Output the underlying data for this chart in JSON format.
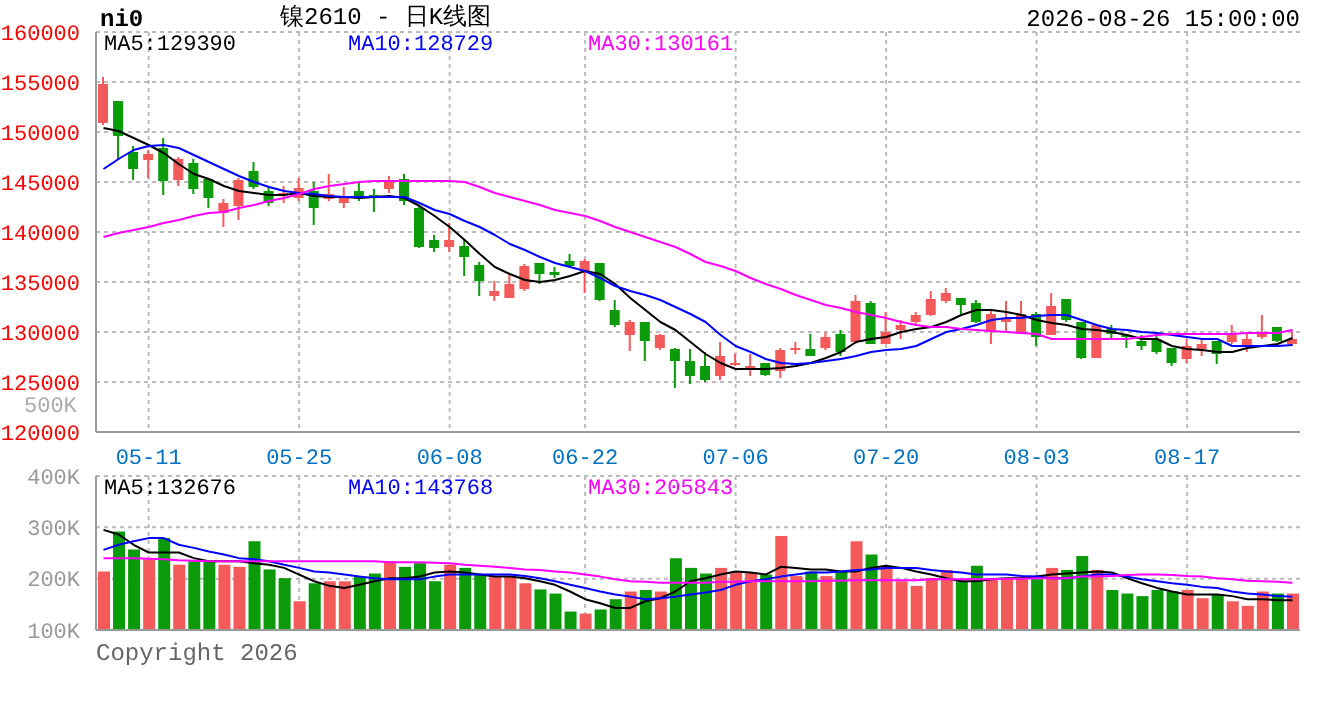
{
  "chart_data": [
    {
      "type": "candlestick",
      "title": "镍2610 - 日K线图",
      "annotations": [
        "ni0",
        "2026-08-26 15:00:00",
        "500K"
      ],
      "categories": [
        null,
        null,
        null,
        "05-11",
        null,
        null,
        null,
        null,
        null,
        null,
        null,
        null,
        null,
        "05-25",
        null,
        null,
        null,
        null,
        null,
        null,
        null,
        null,
        null,
        "06-08",
        null,
        null,
        null,
        null,
        null,
        null,
        null,
        null,
        "06-22",
        null,
        null,
        null,
        null,
        null,
        null,
        null,
        null,
        null,
        "07-06",
        null,
        null,
        null,
        null,
        null,
        null,
        null,
        null,
        null,
        "07-20",
        null,
        null,
        null,
        null,
        null,
        null,
        null,
        null,
        null,
        "08-03",
        null,
        null,
        null,
        null,
        null,
        null,
        null,
        null,
        null,
        "08-17",
        null,
        null,
        null,
        null,
        null,
        null,
        null
      ],
      "ohlc": [
        [
          150900,
          155500,
          150700,
          154800
        ],
        [
          153100,
          153100,
          147300,
          149600
        ],
        [
          148000,
          148600,
          145200,
          146300
        ],
        [
          147200,
          148200,
          145400,
          147800
        ],
        [
          148400,
          149400,
          143700,
          145100
        ],
        [
          145200,
          147500,
          144600,
          147300
        ],
        [
          146900,
          147300,
          143800,
          144300
        ],
        [
          145300,
          145400,
          142400,
          143400
        ],
        [
          141900,
          143300,
          140500,
          142900
        ],
        [
          142600,
          145400,
          141200,
          145200
        ],
        [
          146100,
          147000,
          144300,
          144500
        ],
        [
          144100,
          144600,
          142600,
          142900
        ],
        [
          143700,
          144600,
          142900,
          143900
        ],
        [
          143400,
          145400,
          143100,
          144400
        ],
        [
          144100,
          145000,
          140700,
          142400
        ],
        [
          143300,
          145800,
          143100,
          143800
        ],
        [
          142900,
          144500,
          142400,
          143600
        ],
        [
          144100,
          145000,
          143100,
          143400
        ],
        [
          143700,
          144300,
          142000,
          143500
        ],
        [
          144300,
          145600,
          143900,
          145200
        ],
        [
          145300,
          145800,
          142700,
          143100
        ],
        [
          142400,
          142700,
          138400,
          138500
        ],
        [
          139200,
          139700,
          138000,
          138400
        ],
        [
          138500,
          140900,
          138000,
          139200
        ],
        [
          138600,
          139200,
          135600,
          137500
        ],
        [
          136700,
          137000,
          133600,
          135100
        ],
        [
          133600,
          135100,
          133100,
          134100
        ],
        [
          133400,
          135900,
          133400,
          134800
        ],
        [
          134300,
          136800,
          134100,
          136600
        ],
        [
          136900,
          136900,
          134800,
          135800
        ],
        [
          136000,
          136500,
          135400,
          135700
        ],
        [
          137100,
          137800,
          136500,
          136600
        ],
        [
          136100,
          137300,
          133900,
          137100
        ],
        [
          136900,
          136900,
          133100,
          133200
        ],
        [
          132200,
          133200,
          130500,
          130700
        ],
        [
          129700,
          131200,
          128100,
          131000
        ],
        [
          131000,
          131000,
          127100,
          129100
        ],
        [
          128400,
          129800,
          128200,
          129700
        ],
        [
          128300,
          128400,
          124400,
          127100
        ],
        [
          127100,
          128300,
          124800,
          125600
        ],
        [
          126600,
          128000,
          125000,
          125200
        ],
        [
          125600,
          129000,
          125200,
          127600
        ],
        [
          126700,
          127800,
          126600,
          126900
        ],
        [
          126300,
          127800,
          125600,
          126600
        ],
        [
          126900,
          126900,
          125600,
          125700
        ],
        [
          126100,
          128400,
          125400,
          128200
        ],
        [
          128200,
          129000,
          127800,
          128400
        ],
        [
          128300,
          129800,
          127600,
          127600
        ],
        [
          128400,
          130000,
          128200,
          129500
        ],
        [
          129800,
          130200,
          127600,
          128000
        ],
        [
          129000,
          133700,
          128800,
          133100
        ],
        [
          132900,
          133100,
          128800,
          128800
        ],
        [
          128800,
          132000,
          128800,
          130000
        ],
        [
          130200,
          131200,
          129300,
          130700
        ],
        [
          131000,
          132000,
          130700,
          131700
        ],
        [
          131700,
          134100,
          131600,
          133300
        ],
        [
          133100,
          134400,
          132900,
          133900
        ],
        [
          133400,
          133400,
          131800,
          132700
        ],
        [
          132900,
          133200,
          130900,
          131000
        ],
        [
          130000,
          132200,
          128800,
          131800
        ],
        [
          131000,
          133100,
          130000,
          131400
        ],
        [
          129900,
          133100,
          129800,
          131800
        ],
        [
          131800,
          132000,
          128600,
          129500
        ],
        [
          129700,
          133900,
          129700,
          132600
        ],
        [
          133300,
          133300,
          131000,
          131200
        ],
        [
          131000,
          131000,
          127300,
          127400
        ],
        [
          127400,
          130700,
          127400,
          130700
        ],
        [
          130300,
          130700,
          129300,
          129800
        ],
        [
          129700,
          129800,
          128400,
          129500
        ],
        [
          129100,
          129700,
          128200,
          128600
        ],
        [
          129300,
          130000,
          127800,
          128000
        ],
        [
          128400,
          128400,
          126600,
          126900
        ],
        [
          127300,
          129300,
          126900,
          128600
        ],
        [
          128300,
          129300,
          127600,
          128800
        ],
        [
          129100,
          129100,
          126800,
          127800
        ],
        [
          129000,
          130700,
          128800,
          129800
        ],
        [
          128600,
          130000,
          128000,
          129300
        ],
        [
          129500,
          131700,
          129300,
          130000
        ],
        [
          130500,
          130500,
          129000,
          129100
        ],
        [
          128800,
          130200,
          128600,
          129300
        ]
      ],
      "colors": [
        "#f55a5a",
        "#0a9a0a",
        "#0a9a0a",
        "#f55a5a",
        "#0a9a0a",
        "#f55a5a",
        "#0a9a0a",
        "#0a9a0a",
        "#f55a5a",
        "#f55a5a",
        "#0a9a0a",
        "#0a9a0a",
        "#f55a5a",
        "#f55a5a",
        "#0a9a0a",
        "#f55a5a",
        "#f55a5a",
        "#0a9a0a",
        "#0a9a0a",
        "#f55a5a",
        "#0a9a0a",
        "#0a9a0a",
        "#0a9a0a",
        "#f55a5a",
        "#0a9a0a",
        "#0a9a0a",
        "#f55a5a",
        "#f55a5a",
        "#f55a5a",
        "#0a9a0a",
        "#0a9a0a",
        "#0a9a0a",
        "#f55a5a",
        "#0a9a0a",
        "#0a9a0a",
        "#f55a5a",
        "#0a9a0a",
        "#f55a5a",
        "#0a9a0a",
        "#0a9a0a",
        "#0a9a0a",
        "#f55a5a",
        "#f55a5a",
        "#f55a5a",
        "#0a9a0a",
        "#f55a5a",
        "#f55a5a",
        "#0a9a0a",
        "#f55a5a",
        "#0a9a0a",
        "#f55a5a",
        "#0a9a0a",
        "#f55a5a",
        "#f55a5a",
        "#f55a5a",
        "#f55a5a",
        "#f55a5a",
        "#0a9a0a",
        "#0a9a0a",
        "#f55a5a",
        "#f55a5a",
        "#f55a5a",
        "#0a9a0a",
        "#f55a5a",
        "#0a9a0a",
        "#0a9a0a",
        "#f55a5a",
        "#0a9a0a",
        "#0a9a0a",
        "#0a9a0a",
        "#0a9a0a",
        "#0a9a0a",
        "#f55a5a",
        "#f55a5a",
        "#0a9a0a",
        "#f55a5a",
        "#f55a5a",
        "#f55a5a",
        "#0a9a0a",
        "#f55a5a"
      ],
      "series": [
        {
          "name": "MA5:129390",
          "type": "line",
          "color": "#000000",
          "values": [
            150400,
            150100,
            149400,
            148700,
            147900,
            146800,
            145800,
            145300,
            144600,
            144100,
            143900,
            143700,
            143700,
            143900,
            143600,
            143500,
            143500,
            143400,
            143500,
            143600,
            143400,
            142600,
            141600,
            140500,
            139200,
            137800,
            136500,
            135800,
            135200,
            135000,
            135200,
            135600,
            136100,
            135800,
            134800,
            133400,
            132200,
            131000,
            130200,
            129000,
            127800,
            126900,
            126300,
            126300,
            126300,
            126400,
            126600,
            126900,
            127400,
            128000,
            129000,
            129300,
            129500,
            130000,
            130300,
            130500,
            131000,
            131700,
            132200,
            132200,
            132000,
            131700,
            131200,
            130900,
            130700,
            130300,
            130200,
            130000,
            129700,
            129300,
            129300,
            128600,
            128300,
            128200,
            128000,
            128000,
            128400,
            128600,
            128800,
            129400
          ]
        },
        {
          "name": "MA10:128729",
          "type": "line",
          "color": "#0000ff",
          "values": [
            146300,
            147300,
            148200,
            148600,
            148700,
            148400,
            147700,
            147000,
            146300,
            145600,
            145000,
            144500,
            144100,
            143900,
            143800,
            143600,
            143500,
            143500,
            143500,
            143500,
            143500,
            142900,
            142200,
            141800,
            141100,
            140500,
            139700,
            138800,
            138200,
            137500,
            136900,
            136500,
            136100,
            135400,
            134600,
            134100,
            133700,
            133200,
            132500,
            131800,
            131000,
            129700,
            128600,
            128000,
            127300,
            126900,
            126800,
            126900,
            127100,
            127300,
            127600,
            128000,
            128200,
            128300,
            128600,
            129300,
            130000,
            130300,
            130700,
            131200,
            131400,
            131400,
            131600,
            131700,
            131700,
            131200,
            130700,
            130300,
            130200,
            130000,
            129900,
            129700,
            129500,
            129300,
            129300,
            128600,
            128600,
            128600,
            128600,
            128700
          ]
        },
        {
          "name": "MA30:130161",
          "type": "line",
          "color": "#ff00ff",
          "values": [
            139500,
            139900,
            140200,
            140500,
            140900,
            141200,
            141600,
            141900,
            142000,
            142400,
            142700,
            143100,
            143400,
            143800,
            144300,
            144600,
            144800,
            145000,
            145100,
            145100,
            145100,
            145100,
            145100,
            145100,
            145000,
            144500,
            143900,
            143500,
            143100,
            142700,
            142200,
            141900,
            141600,
            141100,
            140500,
            140000,
            139500,
            139000,
            138500,
            137800,
            137000,
            136600,
            136100,
            135400,
            134800,
            134300,
            133700,
            133200,
            132700,
            132400,
            132000,
            131700,
            131400,
            131000,
            130700,
            130500,
            130500,
            130300,
            130200,
            130100,
            130000,
            129900,
            129800,
            129300,
            129300,
            129300,
            129300,
            129300,
            129300,
            129500,
            129700,
            129800,
            129800,
            129800,
            129800,
            129800,
            129900,
            129900,
            129900,
            130200
          ]
        }
      ],
      "ylim": [
        120000,
        160000
      ],
      "yticks": [
        120000,
        125000,
        130000,
        135000,
        140000,
        145000,
        150000,
        155000,
        160000
      ],
      "grid": true,
      "legend": "top left"
    },
    {
      "type": "bar",
      "annotations": [
        "Copyright 2026"
      ],
      "tick_labels": "y",
      "categories": [
        null,
        null,
        null,
        null,
        null,
        null,
        null,
        null,
        null,
        null,
        null,
        null,
        null,
        null,
        null,
        null,
        null,
        null,
        null,
        null,
        null,
        null,
        null,
        null,
        null,
        null,
        null,
        null,
        null,
        null,
        null,
        null,
        null,
        null,
        null,
        null,
        null,
        null,
        null,
        null,
        null,
        null,
        null,
        null,
        null,
        null,
        null,
        null,
        null,
        null,
        null,
        null,
        null,
        null,
        null,
        null,
        null,
        null,
        null,
        null,
        null,
        null,
        null,
        null,
        null,
        null,
        null,
        null,
        null,
        null,
        null,
        null,
        null,
        null,
        null,
        null,
        null,
        null,
        null,
        null
      ],
      "values": [
        214000,
        292000,
        257000,
        238000,
        279000,
        227000,
        234000,
        234000,
        227000,
        223000,
        273000,
        218000,
        201000,
        156000,
        191000,
        195000,
        195000,
        204000,
        210000,
        234000,
        223000,
        230000,
        195000,
        227000,
        221000,
        208000,
        204000,
        204000,
        191000,
        179000,
        171000,
        136000,
        132000,
        140000,
        160000,
        175000,
        178000,
        175000,
        240000,
        221000,
        210000,
        221000,
        212000,
        212000,
        208000,
        283000,
        205000,
        214000,
        205000,
        214000,
        273000,
        247000,
        223000,
        195000,
        186000,
        201000,
        217000,
        195000,
        225000,
        201000,
        201000,
        201000,
        199000,
        221000,
        217000,
        244000,
        217000,
        178000,
        171000,
        166000,
        178000,
        175000,
        178000,
        162000,
        169000,
        156000,
        147000,
        175000,
        171000,
        171000
      ],
      "colors": [
        "#f55a5a",
        "#0a9a0a",
        "#0a9a0a",
        "#f55a5a",
        "#0a9a0a",
        "#f55a5a",
        "#0a9a0a",
        "#0a9a0a",
        "#f55a5a",
        "#f55a5a",
        "#0a9a0a",
        "#0a9a0a",
        "#0a9a0a",
        "#f55a5a",
        "#0a9a0a",
        "#f55a5a",
        "#f55a5a",
        "#0a9a0a",
        "#0a9a0a",
        "#f55a5a",
        "#0a9a0a",
        "#0a9a0a",
        "#0a9a0a",
        "#f55a5a",
        "#0a9a0a",
        "#0a9a0a",
        "#f55a5a",
        "#f55a5a",
        "#f55a5a",
        "#0a9a0a",
        "#0a9a0a",
        "#0a9a0a",
        "#f55a5a",
        "#0a9a0a",
        "#0a9a0a",
        "#f55a5a",
        "#0a9a0a",
        "#f55a5a",
        "#0a9a0a",
        "#0a9a0a",
        "#0a9a0a",
        "#f55a5a",
        "#f55a5a",
        "#f55a5a",
        "#0a9a0a",
        "#f55a5a",
        "#f55a5a",
        "#0a9a0a",
        "#f55a5a",
        "#0a9a0a",
        "#f55a5a",
        "#0a9a0a",
        "#f55a5a",
        "#f55a5a",
        "#f55a5a",
        "#f55a5a",
        "#f55a5a",
        "#0a9a0a",
        "#0a9a0a",
        "#f55a5a",
        "#f55a5a",
        "#f55a5a",
        "#0a9a0a",
        "#f55a5a",
        "#0a9a0a",
        "#0a9a0a",
        "#f55a5a",
        "#0a9a0a",
        "#0a9a0a",
        "#0a9a0a",
        "#0a9a0a",
        "#0a9a0a",
        "#f55a5a",
        "#f55a5a",
        "#0a9a0a",
        "#f55a5a",
        "#f55a5a",
        "#f55a5a",
        "#0a9a0a",
        "#f55a5a"
      ],
      "series": [
        {
          "name": "MA5:132676",
          "type": "line",
          "color": "#000000",
          "values": [
            295000,
            286000,
            266000,
            251000,
            251000,
            251000,
            240000,
            234000,
            234000,
            234000,
            230000,
            227000,
            221000,
            208000,
            195000,
            186000,
            182000,
            188000,
            195000,
            201000,
            201000,
            204000,
            212000,
            214000,
            212000,
            208000,
            204000,
            204000,
            201000,
            195000,
            188000,
            175000,
            160000,
            152000,
            143000,
            143000,
            156000,
            162000,
            175000,
            195000,
            201000,
            208000,
            214000,
            212000,
            208000,
            223000,
            221000,
            218000,
            218000,
            214000,
            214000,
            221000,
            225000,
            221000,
            214000,
            208000,
            201000,
            195000,
            195000,
            199000,
            201000,
            201000,
            204000,
            208000,
            210000,
            212000,
            214000,
            212000,
            201000,
            191000,
            182000,
            175000,
            169000,
            169000,
            169000,
            166000,
            160000,
            160000,
            158000,
            158000
          ]
        },
        {
          "name": "MA10:143768",
          "type": "line",
          "color": "#0000ff",
          "values": [
            256000,
            266000,
            273000,
            279000,
            279000,
            266000,
            260000,
            253000,
            247000,
            240000,
            238000,
            234000,
            227000,
            221000,
            214000,
            212000,
            208000,
            204000,
            201000,
            199000,
            199000,
            199000,
            204000,
            208000,
            208000,
            208000,
            208000,
            208000,
            205000,
            201000,
            195000,
            188000,
            182000,
            175000,
            169000,
            165000,
            160000,
            162000,
            165000,
            169000,
            173000,
            178000,
            188000,
            195000,
            199000,
            204000,
            208000,
            212000,
            212000,
            214000,
            217000,
            218000,
            221000,
            221000,
            221000,
            217000,
            214000,
            212000,
            208000,
            208000,
            208000,
            205000,
            204000,
            201000,
            201000,
            204000,
            208000,
            208000,
            204000,
            199000,
            195000,
            191000,
            188000,
            184000,
            182000,
            175000,
            171000,
            169000,
            166000,
            165000
          ]
        },
        {
          "name": "MA30:205843",
          "type": "line",
          "color": "#ff00ff",
          "values": [
            240000,
            240000,
            240000,
            239000,
            238000,
            236000,
            235000,
            234000,
            234000,
            234000,
            234000,
            234000,
            234000,
            234000,
            234000,
            234000,
            234000,
            234000,
            234000,
            232000,
            232000,
            232000,
            231000,
            230000,
            227000,
            225000,
            223000,
            221000,
            218000,
            217000,
            214000,
            212000,
            208000,
            204000,
            199000,
            195000,
            194000,
            192000,
            192000,
            192000,
            192000,
            194000,
            194000,
            195000,
            195000,
            195000,
            195000,
            195000,
            196000,
            196000,
            197000,
            197000,
            197000,
            197000,
            197000,
            199000,
            199000,
            199000,
            199000,
            199000,
            200000,
            200000,
            201000,
            201000,
            201000,
            204000,
            204000,
            205000,
            207000,
            208000,
            208000,
            207000,
            205000,
            204000,
            201000,
            199000,
            196000,
            195000,
            194000,
            192000
          ]
        }
      ],
      "ylim": [
        100000,
        400000
      ],
      "yticks": [
        {
          "value": 100000,
          "label": "100K"
        },
        {
          "value": 200000,
          "label": "200K"
        },
        {
          "value": 300000,
          "label": "300K"
        },
        {
          "value": 400000,
          "label": "400K"
        }
      ],
      "grid": true,
      "legend": "top left"
    }
  ]
}
